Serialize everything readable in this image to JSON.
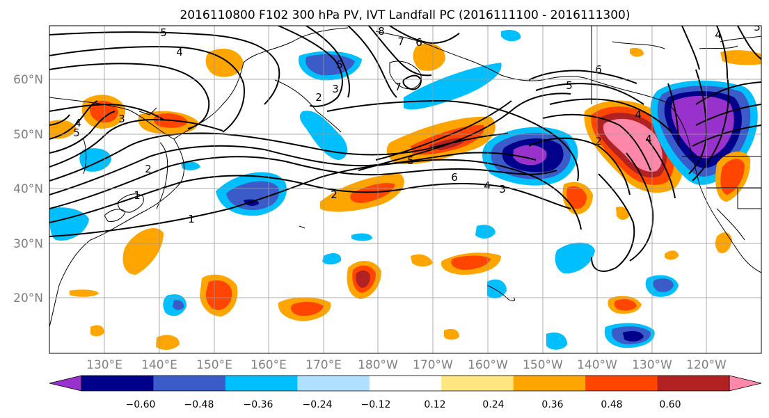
{
  "title": "2016110800 F102 300 hPa PV, IVT Landfall PC (2016111100 - 2016111300)",
  "latitude_labels": [
    "60°N",
    "50°N",
    "40°N",
    "30°N",
    "20°N"
  ],
  "longitude_labels": [
    "130°E",
    "140°E",
    "150°E",
    "160°E",
    "170°E",
    "180°W",
    "170°W",
    "160°W",
    "150°W",
    "140°W",
    "130°W",
    "120°W"
  ],
  "colorbar": {
    "tick_labels": [
      "−0.60",
      "−0.48",
      "−0.36",
      "−0.24",
      "−0.12",
      "0.12",
      "0.24",
      "0.36",
      "0.48",
      "0.60"
    ],
    "colors": [
      "#9932cc",
      "#00008b",
      "#3a5bc8",
      "#00bfff",
      "#b0e0ff",
      "#ffffff",
      "#ffe680",
      "#ffa500",
      "#ff4500",
      "#b22222",
      "#ff88aa"
    ]
  },
  "pv_contour_labels": [
    "5",
    "4",
    "3",
    "4",
    "5",
    "5",
    "2",
    "3",
    "8",
    "7",
    "6",
    "7",
    "2",
    "1",
    "1",
    "2",
    "5",
    "6",
    "4",
    "3",
    "6",
    "5",
    "4",
    "2",
    "4",
    "4",
    "5"
  ]
}
